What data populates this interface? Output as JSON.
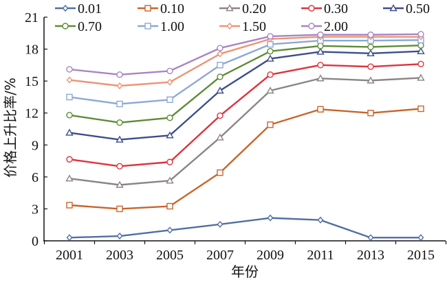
{
  "chart_data": {
    "type": "line",
    "title": "",
    "xlabel": "年份",
    "ylabel": "价格上升比率/%",
    "x": [
      "2001",
      "2003",
      "2005",
      "2007",
      "2009",
      "2011",
      "2013",
      "2015"
    ],
    "ylim": [
      0,
      21
    ],
    "yticks": [
      "0",
      "3",
      "6",
      "9",
      "12",
      "15",
      "18",
      "21"
    ],
    "grid": false,
    "legend_position": "top",
    "series": [
      {
        "name": "0.01",
        "color": "#4f6fa3",
        "marker": "diamond",
        "values": [
          0.3,
          0.45,
          1.0,
          1.55,
          2.15,
          1.95,
          0.3,
          0.3
        ]
      },
      {
        "name": "0.10",
        "color": "#c8642a",
        "marker": "square",
        "values": [
          3.35,
          3.0,
          3.25,
          6.4,
          10.9,
          12.35,
          12.0,
          12.4
        ]
      },
      {
        "name": "0.20",
        "color": "#8c8484",
        "marker": "triangle",
        "values": [
          5.85,
          5.25,
          5.65,
          9.7,
          14.1,
          15.25,
          15.05,
          15.3
        ]
      },
      {
        "name": "0.30",
        "color": "#e0313a",
        "marker": "circle",
        "values": [
          7.65,
          7.0,
          7.4,
          11.75,
          15.6,
          16.5,
          16.35,
          16.6
        ]
      },
      {
        "name": "0.50",
        "color": "#3c4c8c",
        "marker": "triangle",
        "values": [
          10.15,
          9.5,
          9.9,
          14.1,
          17.1,
          17.75,
          17.6,
          17.8
        ]
      },
      {
        "name": "0.70",
        "color": "#5c8c34",
        "marker": "circle",
        "values": [
          11.8,
          11.1,
          11.55,
          15.4,
          17.8,
          18.3,
          18.2,
          18.35
        ]
      },
      {
        "name": "1.00",
        "color": "#8ca8d4",
        "marker": "square",
        "values": [
          13.5,
          12.85,
          13.25,
          16.5,
          18.45,
          18.8,
          18.8,
          18.85
        ]
      },
      {
        "name": "1.50",
        "color": "#ec9474",
        "marker": "diamond",
        "values": [
          15.1,
          14.55,
          14.9,
          17.55,
          18.95,
          19.15,
          19.15,
          19.15
        ]
      },
      {
        "name": "2.00",
        "color": "#a884c4",
        "marker": "circle",
        "values": [
          16.1,
          15.6,
          15.95,
          18.1,
          19.2,
          19.35,
          19.35,
          19.4
        ]
      }
    ]
  }
}
